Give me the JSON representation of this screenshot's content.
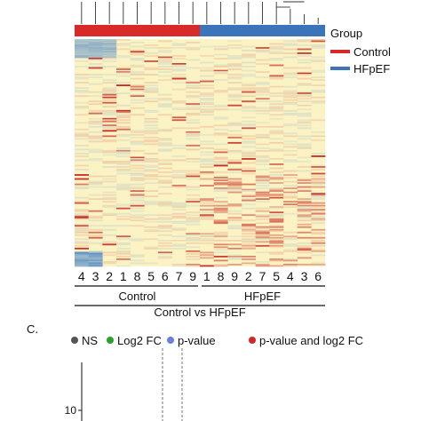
{
  "chart_data": [
    {
      "type": "heatmap",
      "title": "Control vs HFpEF",
      "xlabel": "",
      "ylabel": "",
      "annotation": {
        "label": "Group",
        "legend_placement": "right",
        "legend": [
          {
            "name": "Control",
            "color": "#d92a2a"
          },
          {
            "name": "HFpEF",
            "color": "#3b74b8"
          }
        ]
      },
      "groups": [
        {
          "name": "Control",
          "samples": [
            "4",
            "3",
            "2",
            "1",
            "8",
            "5",
            "6",
            "7",
            "9"
          ]
        },
        {
          "name": "HFpEF",
          "samples": [
            "1",
            "8",
            "9",
            "2",
            "7",
            "5",
            "4",
            "3",
            "6"
          ]
        }
      ],
      "color_scale": {
        "low": "#5a90c8",
        "mid": "#fbf3c4",
        "high": "#c8271f"
      },
      "dendrogram": "top"
    },
    {
      "type": "scatter",
      "panel_label": "C.",
      "legend_placement": "top",
      "legend": [
        {
          "name": "NS",
          "color": "#555555"
        },
        {
          "name": "Log2 FC",
          "color": "#2ca02c"
        },
        {
          "name": "p-value",
          "color": "#6a7fdb"
        },
        {
          "name": "p-value and log2 FC",
          "color": "#d62728"
        }
      ],
      "y_ticks": [
        "10"
      ]
    }
  ]
}
